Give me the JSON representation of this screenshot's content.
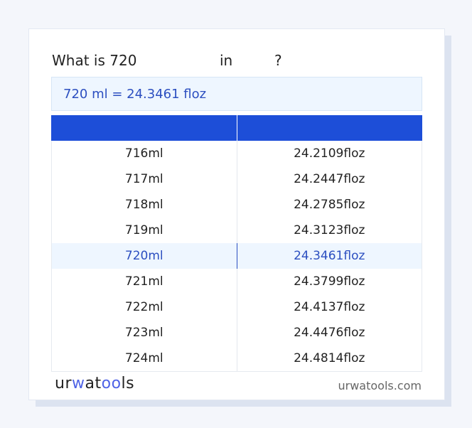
{
  "title": {
    "prefix": "What is 720",
    "middle": "in",
    "suffix": "?"
  },
  "result": "720 ml = 24.3461 floz",
  "table": {
    "headers": [
      "",
      ""
    ],
    "rows": [
      [
        "716ml",
        "24.2109floz"
      ],
      [
        "717ml",
        "24.2447floz"
      ],
      [
        "718ml",
        "24.2785floz"
      ],
      [
        "719ml",
        "24.3123floz"
      ],
      [
        "720ml",
        "24.3461floz"
      ],
      [
        "721ml",
        "24.3799floz"
      ],
      [
        "722ml",
        "24.4137floz"
      ],
      [
        "723ml",
        "24.4476floz"
      ],
      [
        "724ml",
        "24.4814floz"
      ]
    ],
    "highlighted_index": 4
  },
  "footer": {
    "logo": "urwatools",
    "site": "urwatools.com"
  },
  "colors": {
    "accent": "#1d4ed8",
    "highlight_bg": "#eef6ff",
    "highlight_text": "#2c4fc0"
  }
}
